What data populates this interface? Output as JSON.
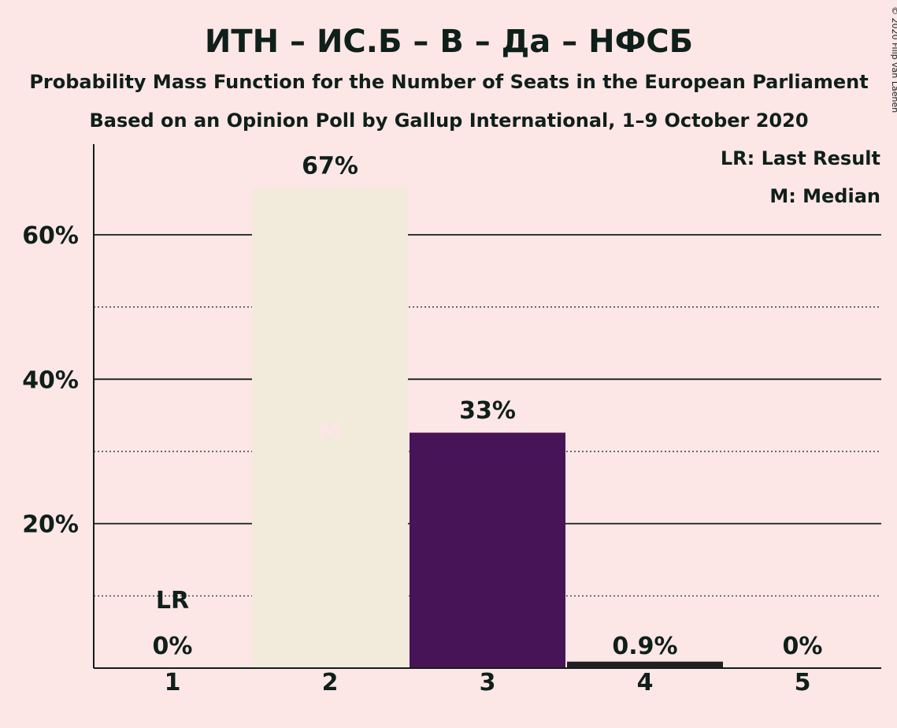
{
  "copyright": "© 2020 Filip van Laenen",
  "chart_data": {
    "type": "bar",
    "title": "ИТН – ИС.Б – В – Да – НФСБ",
    "subtitle": "Probability Mass Function for the Number of Seats in the European Parliament",
    "subtitle2": "Based on an Opinion Poll by Gallup International, 1–9 October 2020",
    "categories": [
      "1",
      "2",
      "3",
      "4",
      "5"
    ],
    "values": [
      0,
      66.5,
      32.6,
      0.9,
      0
    ],
    "value_labels": [
      "0%",
      "67%",
      "33%",
      "0.9%",
      "0%"
    ],
    "bar_colors": [
      "#F2EADA",
      "#F2EADA",
      "#471557",
      "#231F20",
      "#F2EADA"
    ],
    "y_ticks": [
      {
        "value": 20,
        "label": "20%"
      },
      {
        "value": 40,
        "label": "40%"
      },
      {
        "value": 60,
        "label": "60%"
      }
    ],
    "minor_gridlines": [
      10,
      30,
      50
    ],
    "ylim": [
      0,
      72
    ],
    "last_result": {
      "category": "1",
      "marker": "LR"
    },
    "median": {
      "category": "2",
      "marker": "M"
    },
    "legend": {
      "position": "top-right",
      "entries": [
        "LR: Last Result",
        "M: Median"
      ]
    },
    "colors": {
      "background": "#FDE6E6",
      "text": "#0F1F1A",
      "median_marker": "#FDE6E6"
    }
  }
}
